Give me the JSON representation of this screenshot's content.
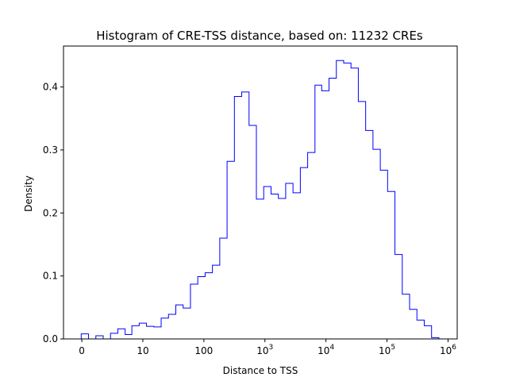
{
  "chart_data": {
    "type": "histogram",
    "title": "Histogram of CRE-TSS distance, based on: 11232 CREs",
    "xlabel": "Distance to TSS",
    "ylabel": "Density",
    "x_scale": "symlog",
    "xlim": [
      -0.3,
      6.15
    ],
    "ylim": [
      0,
      0.465
    ],
    "x_ticks": [
      {
        "pos": 0,
        "base": "0",
        "exp": ""
      },
      {
        "pos": 1,
        "base": "10",
        "exp": ""
      },
      {
        "pos": 2,
        "base": "100",
        "exp": ""
      },
      {
        "pos": 3,
        "base": "10",
        "exp": "3"
      },
      {
        "pos": 4,
        "base": "10",
        "exp": "4"
      },
      {
        "pos": 5,
        "base": "10",
        "exp": "5"
      },
      {
        "pos": 6,
        "base": "10",
        "exp": "6"
      }
    ],
    "y_ticks": [
      "0.0",
      "0.1",
      "0.2",
      "0.3",
      "0.4"
    ],
    "y_tick_values": [
      0.0,
      0.1,
      0.2,
      0.3,
      0.4
    ],
    "line_color": "#0000ff",
    "bin_edges": [
      -0.01,
      0.11,
      0.23,
      0.35,
      0.47,
      0.59,
      0.71,
      0.82,
      0.94,
      1.06,
      1.18,
      1.3,
      1.42,
      1.54,
      1.66,
      1.78,
      1.9,
      2.02,
      2.14,
      2.26,
      2.38,
      2.5,
      2.62,
      2.74,
      2.86,
      2.98,
      3.1,
      3.22,
      3.34,
      3.46,
      3.58,
      3.7,
      3.82,
      3.93,
      4.05,
      4.17,
      4.29,
      4.41,
      4.53,
      4.65,
      4.77,
      4.89,
      5.01,
      5.13,
      5.25,
      5.37,
      5.49,
      5.61,
      5.73,
      5.85
    ],
    "densities": [
      0.008,
      0.0,
      0.005,
      0.0,
      0.009,
      0.016,
      0.007,
      0.021,
      0.025,
      0.02,
      0.019,
      0.033,
      0.039,
      0.054,
      0.049,
      0.087,
      0.099,
      0.105,
      0.117,
      0.16,
      0.282,
      0.385,
      0.392,
      0.339,
      0.222,
      0.242,
      0.23,
      0.223,
      0.247,
      0.232,
      0.272,
      0.296,
      0.403,
      0.394,
      0.414,
      0.442,
      0.438,
      0.43,
      0.377,
      0.331,
      0.301,
      0.268,
      0.234,
      0.134,
      0.071,
      0.047,
      0.03,
      0.021,
      0.002
    ]
  }
}
